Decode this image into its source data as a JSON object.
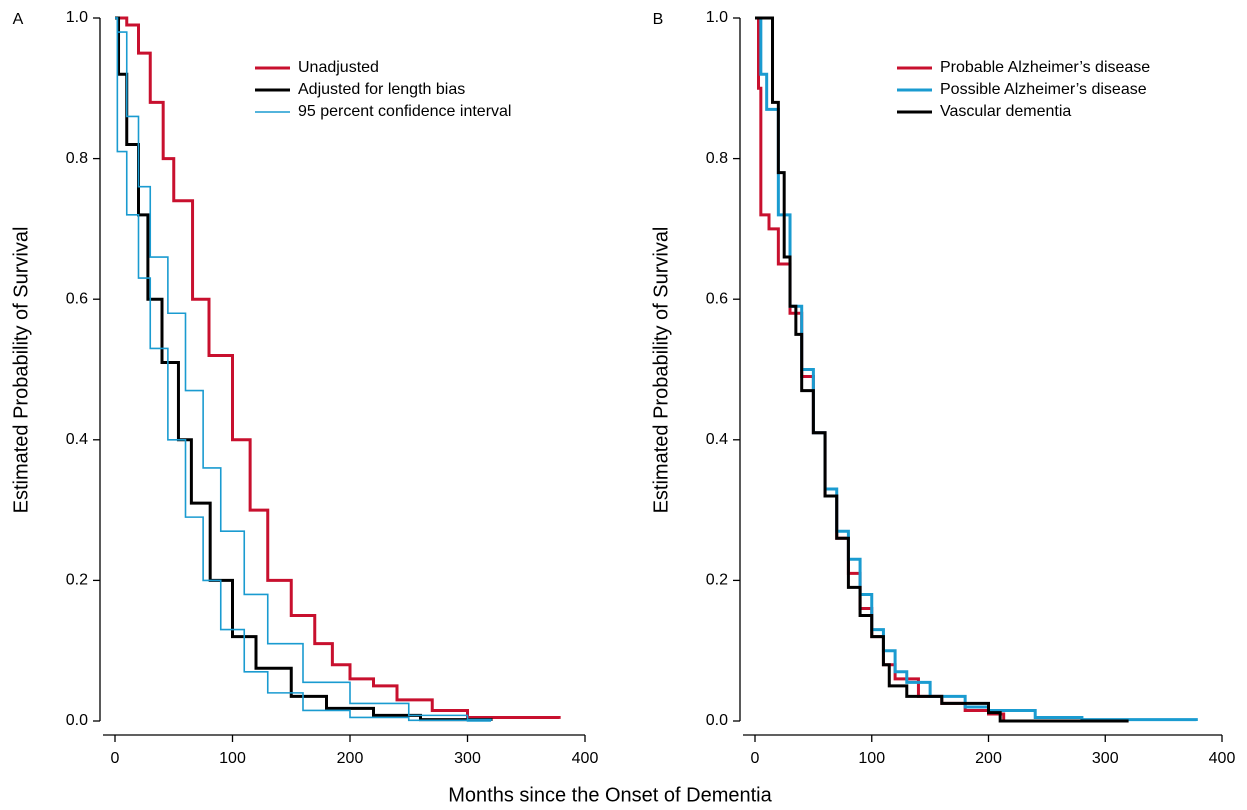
{
  "chart_data": [
    {
      "type": "step",
      "panel_label": "A",
      "ylabel": "Estimated Probability of Survival",
      "xlabel": "Months since the Onset of Dementia",
      "xlim": [
        0,
        400
      ],
      "ylim": [
        0,
        1
      ],
      "xticks": [
        0,
        100,
        200,
        300,
        400
      ],
      "yticks": [
        {
          "value": 0,
          "label": "0.0"
        },
        {
          "value": 0.2,
          "label": "0.2"
        },
        {
          "value": 0.4,
          "label": "0.4"
        },
        {
          "value": 0.6,
          "label": "0.6"
        },
        {
          "value": 0.8,
          "label": "0.8"
        },
        {
          "value": 1,
          "label": "1.0"
        }
      ],
      "legend": "upper right",
      "series": [
        {
          "name": "Unadjusted",
          "color": "#c8102e",
          "width": 3,
          "x": [
            0,
            10,
            20,
            30,
            41,
            50,
            66,
            80,
            100,
            115,
            130,
            150,
            170,
            185,
            200,
            220,
            240,
            270,
            300,
            378
          ],
          "values": [
            1,
            0.99,
            0.95,
            0.88,
            0.8,
            0.74,
            0.6,
            0.52,
            0.4,
            0.3,
            0.2,
            0.15,
            0.11,
            0.08,
            0.06,
            0.05,
            0.03,
            0.015,
            0.005,
            0.003
          ]
        },
        {
          "name": "Adjusted for length bias",
          "color": "#000000",
          "width": 3,
          "x": [
            0,
            3,
            10,
            20,
            28,
            40,
            54,
            65,
            81,
            100,
            120,
            150,
            180,
            220,
            260,
            320
          ],
          "values": [
            1,
            0.92,
            0.82,
            0.72,
            0.6,
            0.51,
            0.4,
            0.31,
            0.2,
            0.12,
            0.075,
            0.035,
            0.018,
            0.008,
            0.002,
            0
          ]
        },
        {
          "name": "95 percent confidence interval",
          "color": "#1a9bd0",
          "width": 1.6,
          "x": [
            0,
            2,
            10,
            20,
            30,
            45,
            60,
            75,
            90,
            110,
            130,
            160,
            200,
            250,
            300,
            320
          ],
          "lower": [
            1,
            0.81,
            0.72,
            0.63,
            0.53,
            0.4,
            0.29,
            0.2,
            0.13,
            0.07,
            0.04,
            0.015,
            0.005,
            0.001,
            0,
            0
          ],
          "upper": [
            1,
            0.98,
            0.86,
            0.76,
            0.66,
            0.58,
            0.47,
            0.36,
            0.27,
            0.18,
            0.11,
            0.055,
            0.025,
            0.008,
            0.002,
            0
          ]
        }
      ]
    },
    {
      "type": "step",
      "panel_label": "B",
      "ylabel": "Estimated Probability of Survival",
      "xlim": [
        0,
        400
      ],
      "ylim": [
        0,
        1
      ],
      "xticks": [
        0,
        100,
        200,
        300,
        400
      ],
      "yticks": [
        {
          "value": 0,
          "label": "0.0"
        },
        {
          "value": 0.2,
          "label": "0.2"
        },
        {
          "value": 0.4,
          "label": "0.4"
        },
        {
          "value": 0.6,
          "label": "0.6"
        },
        {
          "value": 0.8,
          "label": "0.8"
        },
        {
          "value": 1,
          "label": "1.0"
        }
      ],
      "legend": "upper right",
      "series": [
        {
          "name": "Probable Alzheimer’s disease",
          "color": "#c8102e",
          "width": 3,
          "x": [
            0,
            3,
            5,
            12,
            20,
            30,
            40,
            50,
            60,
            70,
            80,
            90,
            100,
            110,
            120,
            140,
            160,
            180,
            200,
            213
          ],
          "values": [
            1,
            0.9,
            0.72,
            0.7,
            0.65,
            0.58,
            0.49,
            0.41,
            0.32,
            0.26,
            0.21,
            0.16,
            0.12,
            0.08,
            0.06,
            0.035,
            0.025,
            0.015,
            0.01,
            0
          ]
        },
        {
          "name": "Possible Alzheimer’s disease",
          "color": "#1a9bd0",
          "width": 3,
          "x": [
            0,
            5,
            10,
            20,
            30,
            40,
            50,
            60,
            70,
            80,
            90,
            100,
            110,
            120,
            130,
            150,
            180,
            200,
            240,
            280,
            378
          ],
          "values": [
            1,
            0.92,
            0.87,
            0.72,
            0.59,
            0.5,
            0.41,
            0.33,
            0.27,
            0.23,
            0.18,
            0.13,
            0.1,
            0.07,
            0.055,
            0.035,
            0.02,
            0.015,
            0.005,
            0.002,
            0
          ]
        },
        {
          "name": "Vascular dementia",
          "color": "#000000",
          "width": 3,
          "x": [
            0,
            15,
            20,
            25,
            30,
            35,
            40,
            50,
            60,
            70,
            80,
            90,
            100,
            110,
            115,
            130,
            160,
            200,
            210,
            320
          ],
          "values": [
            1,
            0.88,
            0.78,
            0.66,
            0.59,
            0.55,
            0.47,
            0.41,
            0.32,
            0.26,
            0.19,
            0.15,
            0.12,
            0.08,
            0.05,
            0.035,
            0.025,
            0.012,
            0,
            0
          ]
        }
      ]
    }
  ]
}
